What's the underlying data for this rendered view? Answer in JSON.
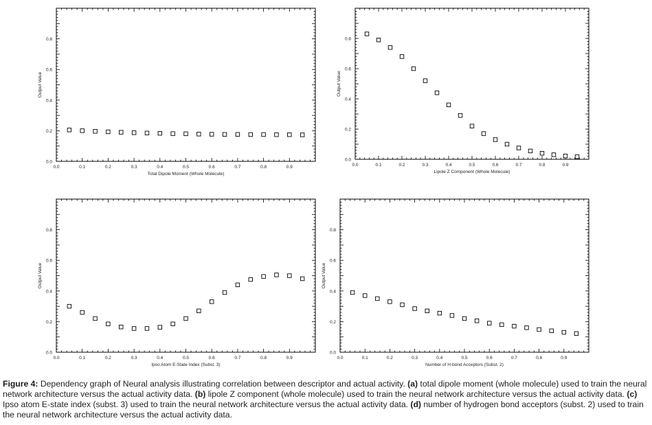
{
  "chart_data": [
    {
      "panel": "a",
      "type": "scatter",
      "xlabel": "Total Dipole Moment (Whole Molecule)",
      "ylabel": "Output Value",
      "xlim": [
        0.0,
        1.0
      ],
      "ylim": [
        0.0,
        1.0
      ],
      "xticks": [
        "0.0",
        "0.1",
        "0.2",
        "0.3",
        "0.4",
        "0.5",
        "0.6",
        "0.7",
        "0.8",
        "0.9"
      ],
      "xtick_values": [
        0.0,
        0.1,
        0.2,
        0.3,
        0.4,
        0.5,
        0.6,
        0.7,
        0.8,
        0.9
      ],
      "yticks": [
        "0.0",
        "0.2",
        "0.4",
        "0.6",
        "0.8"
      ],
      "ytick_values": [
        0.0,
        0.2,
        0.4,
        0.6,
        0.8
      ],
      "grid": false,
      "x": [
        0.05,
        0.1,
        0.15,
        0.2,
        0.25,
        0.3,
        0.35,
        0.4,
        0.45,
        0.5,
        0.55,
        0.6,
        0.65,
        0.7,
        0.75,
        0.8,
        0.85,
        0.9,
        0.95
      ],
      "y": [
        0.205,
        0.2,
        0.196,
        0.193,
        0.19,
        0.187,
        0.185,
        0.183,
        0.181,
        0.18,
        0.178,
        0.177,
        0.176,
        0.176,
        0.175,
        0.175,
        0.174,
        0.174,
        0.173
      ]
    },
    {
      "panel": "b",
      "type": "scatter",
      "xlabel": "Lipole Z Component (Whole Molecule)",
      "ylabel": "Output Value",
      "xlim": [
        0.0,
        1.0
      ],
      "ylim": [
        0.0,
        1.0
      ],
      "xticks": [
        "0.0",
        "0.1",
        "0.2",
        "0.3",
        "0.4",
        "0.5",
        "0.6",
        "0.7",
        "0.8",
        "0.9"
      ],
      "xtick_values": [
        0.0,
        0.1,
        0.2,
        0.3,
        0.4,
        0.5,
        0.6,
        0.7,
        0.8,
        0.9
      ],
      "yticks": [
        "0.0",
        "0.2",
        "0.4",
        "0.6",
        "0.8"
      ],
      "ytick_values": [
        0.0,
        0.2,
        0.4,
        0.6,
        0.8
      ],
      "grid": false,
      "x": [
        0.05,
        0.1,
        0.15,
        0.2,
        0.25,
        0.3,
        0.35,
        0.4,
        0.45,
        0.5,
        0.55,
        0.6,
        0.65,
        0.7,
        0.75,
        0.8,
        0.85,
        0.9,
        0.95
      ],
      "y": [
        0.83,
        0.79,
        0.74,
        0.68,
        0.6,
        0.52,
        0.44,
        0.36,
        0.29,
        0.22,
        0.17,
        0.13,
        0.1,
        0.075,
        0.055,
        0.04,
        0.03,
        0.022,
        0.017
      ]
    },
    {
      "panel": "c",
      "type": "scatter",
      "xlabel": "Ipso Atom E-State Index (Subst. 3)",
      "ylabel": "Output Value",
      "xlim": [
        0.0,
        1.0
      ],
      "ylim": [
        0.0,
        1.0
      ],
      "xticks": [
        "0.0",
        "0.1",
        "0.2",
        "0.3",
        "0.4",
        "0.5",
        "0.6",
        "0.7",
        "0.8",
        "0.9"
      ],
      "xtick_values": [
        0.0,
        0.1,
        0.2,
        0.3,
        0.4,
        0.5,
        0.6,
        0.7,
        0.8,
        0.9
      ],
      "yticks": [
        "0.0",
        "0.2",
        "0.4",
        "0.6",
        "0.8"
      ],
      "ytick_values": [
        0.0,
        0.2,
        0.4,
        0.6,
        0.8
      ],
      "grid": false,
      "x": [
        0.05,
        0.1,
        0.15,
        0.2,
        0.25,
        0.3,
        0.35,
        0.4,
        0.45,
        0.5,
        0.55,
        0.6,
        0.65,
        0.7,
        0.75,
        0.8,
        0.85,
        0.9,
        0.95
      ],
      "y": [
        0.3,
        0.26,
        0.22,
        0.185,
        0.165,
        0.155,
        0.155,
        0.163,
        0.185,
        0.22,
        0.27,
        0.33,
        0.39,
        0.44,
        0.475,
        0.495,
        0.505,
        0.5,
        0.48
      ]
    },
    {
      "panel": "d",
      "type": "scatter",
      "xlabel": "Number of H-bond Acceptors (Subst. 2)",
      "ylabel": "Output Value",
      "xlim": [
        0.0,
        1.0
      ],
      "ylim": [
        0.0,
        1.0
      ],
      "xticks": [
        "0.0",
        "0.1",
        "0.2",
        "0.3",
        "0.4",
        "0.5",
        "0.6",
        "0.7",
        "0.8",
        "0.9"
      ],
      "xtick_values": [
        0.0,
        0.1,
        0.2,
        0.3,
        0.4,
        0.5,
        0.6,
        0.7,
        0.8,
        0.9
      ],
      "yticks": [
        "0.0",
        "0.2",
        "0.4",
        "0.6",
        "0.8"
      ],
      "ytick_values": [
        0.0,
        0.2,
        0.4,
        0.6,
        0.8
      ],
      "grid": false,
      "x": [
        0.05,
        0.1,
        0.15,
        0.2,
        0.25,
        0.3,
        0.35,
        0.4,
        0.45,
        0.5,
        0.55,
        0.6,
        0.65,
        0.7,
        0.75,
        0.8,
        0.85,
        0.9,
        0.95
      ],
      "y": [
        0.39,
        0.37,
        0.35,
        0.33,
        0.31,
        0.285,
        0.27,
        0.255,
        0.24,
        0.22,
        0.205,
        0.19,
        0.18,
        0.17,
        0.16,
        0.148,
        0.14,
        0.13,
        0.122
      ]
    }
  ],
  "caption": {
    "lead": "Figure 4:",
    "s0": " Dependency graph of Neural analysis illustrating correlation between descriptor and actual activity. ",
    "la": "(a)",
    "ta": " total dipole moment (whole molecule) used to train the neural network architecture versus the actual activity data. ",
    "lb": "(b)",
    "tb": " lipole Z component (whole molecule) used to train the neural network architecture versus the actual activity data. ",
    "lc": "(c)",
    "tc": " Ipso atom E-state index (subst. 3) used to train the neural network architecture versus the actual activity data. ",
    "ld": "(d)",
    "td": " number of hydrogen bond acceptors (subst. 2) used to train the neural network architecture versus the actual activity data."
  },
  "colors": {
    "axis": "#000000",
    "marker": "#000000",
    "caption_lead": "#1a1a1a"
  }
}
